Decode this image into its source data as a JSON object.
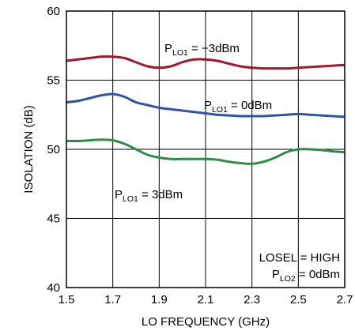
{
  "chart_data": {
    "type": "line",
    "xlabel": "LO FREQUENCY (GHz)",
    "ylabel": "ISOLATION (dB)",
    "xlim": [
      1.5,
      2.7
    ],
    "ylim": [
      40,
      60
    ],
    "x_ticks": [
      "1.5",
      "1.7",
      "1.9",
      "2.1",
      "2.3",
      "2.5",
      "2.7"
    ],
    "y_ticks": [
      "40",
      "45",
      "50",
      "55",
      "60"
    ],
    "grid": true,
    "series": [
      {
        "name": "P_LO1 = −3dBm",
        "color": "#a0182b",
        "x": [
          1.5,
          1.55,
          1.6,
          1.65,
          1.7,
          1.75,
          1.8,
          1.85,
          1.9,
          1.95,
          2.0,
          2.05,
          2.1,
          2.15,
          2.2,
          2.25,
          2.3,
          2.35,
          2.4,
          2.45,
          2.5,
          2.55,
          2.6,
          2.65,
          2.7
        ],
        "values": [
          56.4,
          56.5,
          56.6,
          56.7,
          56.7,
          56.6,
          56.3,
          56.0,
          55.9,
          56.0,
          56.3,
          56.5,
          56.5,
          56.4,
          56.2,
          56.0,
          55.9,
          55.85,
          55.85,
          55.85,
          55.9,
          55.95,
          56.0,
          56.05,
          56.1
        ]
      },
      {
        "name": "P_LO1 = 0dBm",
        "color": "#2e54a6",
        "x": [
          1.5,
          1.55,
          1.6,
          1.65,
          1.7,
          1.75,
          1.8,
          1.85,
          1.9,
          1.95,
          2.0,
          2.05,
          2.1,
          2.15,
          2.2,
          2.25,
          2.3,
          2.35,
          2.4,
          2.45,
          2.5,
          2.55,
          2.6,
          2.65,
          2.7
        ],
        "values": [
          53.4,
          53.5,
          53.7,
          53.9,
          54.0,
          53.8,
          53.4,
          53.2,
          53.0,
          52.9,
          52.8,
          52.7,
          52.6,
          52.5,
          52.45,
          52.4,
          52.4,
          52.4,
          52.45,
          52.5,
          52.55,
          52.5,
          52.45,
          52.4,
          52.35
        ]
      },
      {
        "name": "P_LO1 = 3dBm",
        "color": "#2d8c45",
        "x": [
          1.5,
          1.55,
          1.6,
          1.65,
          1.7,
          1.75,
          1.8,
          1.85,
          1.9,
          1.95,
          2.0,
          2.05,
          2.1,
          2.15,
          2.2,
          2.25,
          2.3,
          2.35,
          2.4,
          2.45,
          2.5,
          2.55,
          2.6,
          2.65,
          2.7
        ],
        "values": [
          50.6,
          50.6,
          50.65,
          50.7,
          50.65,
          50.4,
          50.0,
          49.6,
          49.4,
          49.3,
          49.3,
          49.3,
          49.3,
          49.25,
          49.1,
          49.0,
          48.95,
          49.1,
          49.4,
          49.8,
          50.0,
          50.0,
          49.95,
          49.85,
          49.8
        ]
      }
    ],
    "labels": [
      {
        "main": "P",
        "sub": "LO1",
        "rest": " = −3dBm"
      },
      {
        "main": "P",
        "sub": "LO1",
        "rest": " = 0dBm"
      },
      {
        "main": "P",
        "sub": "LO1",
        "rest": " = 3dBm"
      }
    ],
    "conditions": {
      "line1": "LOSEL = HIGH",
      "line2_main": "P",
      "line2_sub": "LO2",
      "line2_rest": " = 0dBm"
    }
  }
}
